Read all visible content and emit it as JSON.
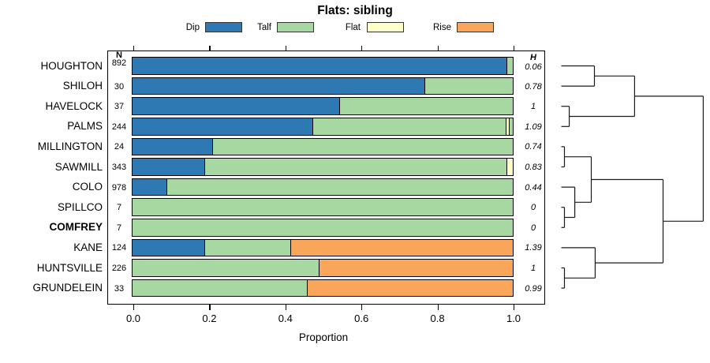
{
  "title": "Flats: sibling",
  "columns": {
    "n_header": "N",
    "h_header": "H"
  },
  "axis": {
    "label": "Proportion",
    "ticks": [
      "0.0",
      "0.2",
      "0.4",
      "0.6",
      "0.8",
      "1.0"
    ]
  },
  "legend": {
    "items": [
      {
        "label": "Dip",
        "color": "#2E79B4"
      },
      {
        "label": "Talf",
        "color": "#A8D8A2"
      },
      {
        "label": "Flat",
        "color": "#FFFFC8"
      },
      {
        "label": "Rise",
        "color": "#FAA65A"
      }
    ]
  },
  "colors": {
    "Dip": "#2E79B4",
    "Talf": "#A8D8A2",
    "Flat": "#FFFFC8",
    "Rise": "#FAA65A",
    "line": "#1a1a1a"
  },
  "chart_data": {
    "type": "bar",
    "orientation": "horizontal",
    "stacked": true,
    "title": "Flats: sibling",
    "xlabel": "Proportion",
    "xlim": [
      0,
      1
    ],
    "x_ticks": [
      0.0,
      0.2,
      0.4,
      0.6,
      0.8,
      1.0
    ],
    "grid": false,
    "legend_position": "top",
    "legend_entries": [
      "Dip",
      "Talf",
      "Flat",
      "Rise"
    ],
    "rows": [
      {
        "label": "HOUGHTON",
        "bold": false,
        "n": "892",
        "entropy": "0.06",
        "segments": [
          {
            "category": "Dip",
            "value": 0.985
          },
          {
            "category": "Talf",
            "value": 0.015
          }
        ]
      },
      {
        "label": "SHILOH",
        "bold": false,
        "n": "30",
        "entropy": "0.78",
        "segments": [
          {
            "category": "Dip",
            "value": 0.77
          },
          {
            "category": "Talf",
            "value": 0.23
          }
        ]
      },
      {
        "label": "HAVELOCK",
        "bold": false,
        "n": "37",
        "entropy": "1",
        "segments": [
          {
            "category": "Dip",
            "value": 0.545
          },
          {
            "category": "Talf",
            "value": 0.455
          }
        ]
      },
      {
        "label": "PALMS",
        "bold": false,
        "n": "244",
        "entropy": "1.09",
        "segments": [
          {
            "category": "Dip",
            "value": 0.477
          },
          {
            "category": "Talf",
            "value": 0.508
          },
          {
            "category": "Flat",
            "value": 0.007
          },
          {
            "category": "Talf",
            "value": 0.008
          }
        ]
      },
      {
        "label": "MILLINGTON",
        "bold": false,
        "n": "24",
        "entropy": "0.74",
        "segments": [
          {
            "category": "Dip",
            "value": 0.21
          },
          {
            "category": "Talf",
            "value": 0.79
          }
        ]
      },
      {
        "label": "SAWMILL",
        "bold": false,
        "n": "343",
        "entropy": "0.83",
        "segments": [
          {
            "category": "Dip",
            "value": 0.19
          },
          {
            "category": "Talf",
            "value": 0.795
          },
          {
            "category": "Flat",
            "value": 0.015
          }
        ]
      },
      {
        "label": "COLO",
        "bold": false,
        "n": "978",
        "entropy": "0.44",
        "segments": [
          {
            "category": "Dip",
            "value": 0.09
          },
          {
            "category": "Talf",
            "value": 0.91
          }
        ]
      },
      {
        "label": "SPILLCO",
        "bold": false,
        "n": "7",
        "entropy": "0",
        "segments": [
          {
            "category": "Talf",
            "value": 1
          }
        ]
      },
      {
        "label": "COMFREY",
        "bold": true,
        "n": "7",
        "entropy": "0",
        "segments": [
          {
            "category": "Talf",
            "value": 1
          }
        ]
      },
      {
        "label": "KANE",
        "bold": false,
        "n": "124",
        "entropy": "1.39",
        "segments": [
          {
            "category": "Dip",
            "value": 0.19
          },
          {
            "category": "Talf",
            "value": 0.225
          },
          {
            "category": "Rise",
            "value": 0.585
          }
        ]
      },
      {
        "label": "HUNTSVILLE",
        "bold": false,
        "n": "226",
        "entropy": "1",
        "segments": [
          {
            "category": "Talf",
            "value": 0.49
          },
          {
            "category": "Rise",
            "value": 0.51
          }
        ]
      },
      {
        "label": "GRUNDELEIN",
        "bold": false,
        "n": "33",
        "entropy": "0.99",
        "segments": [
          {
            "category": "Talf",
            "value": 0.46
          },
          {
            "category": "Rise",
            "value": 0.54
          }
        ]
      }
    ],
    "dendrogram": {
      "position": "right",
      "tree": {
        "h": 0.947,
        "children": [
          {
            "h": 0.489,
            "children": [
              {
                "h": 0.221,
                "children": [
                  {
                    "leaf": 0
                  },
                  {
                    "leaf": 1
                  }
                ]
              },
              {
                "h": 0.053,
                "children": [
                  {
                    "leaf": 2
                  },
                  {
                    "leaf": 3
                  }
                ]
              }
            ]
          },
          {
            "h": 0.679,
            "children": [
              {
                "h": 0.2,
                "children": [
                  {
                    "h": 0.021,
                    "children": [
                      {
                        "leaf": 4
                      },
                      {
                        "leaf": 5
                      }
                    ]
                  },
                  {
                    "h": 0.09,
                    "children": [
                      {
                        "leaf": 6
                      },
                      {
                        "h": 0.021,
                        "children": [
                          {
                            "leaf": 7
                          },
                          {
                            "leaf": 8
                          }
                        ]
                      }
                    ]
                  }
                ]
              },
              {
                "h": 0.226,
                "children": [
                  {
                    "leaf": 9
                  },
                  {
                    "h": 0.021,
                    "children": [
                      {
                        "leaf": 10
                      },
                      {
                        "leaf": 11
                      }
                    ]
                  }
                ]
              }
            ]
          }
        ]
      }
    }
  }
}
